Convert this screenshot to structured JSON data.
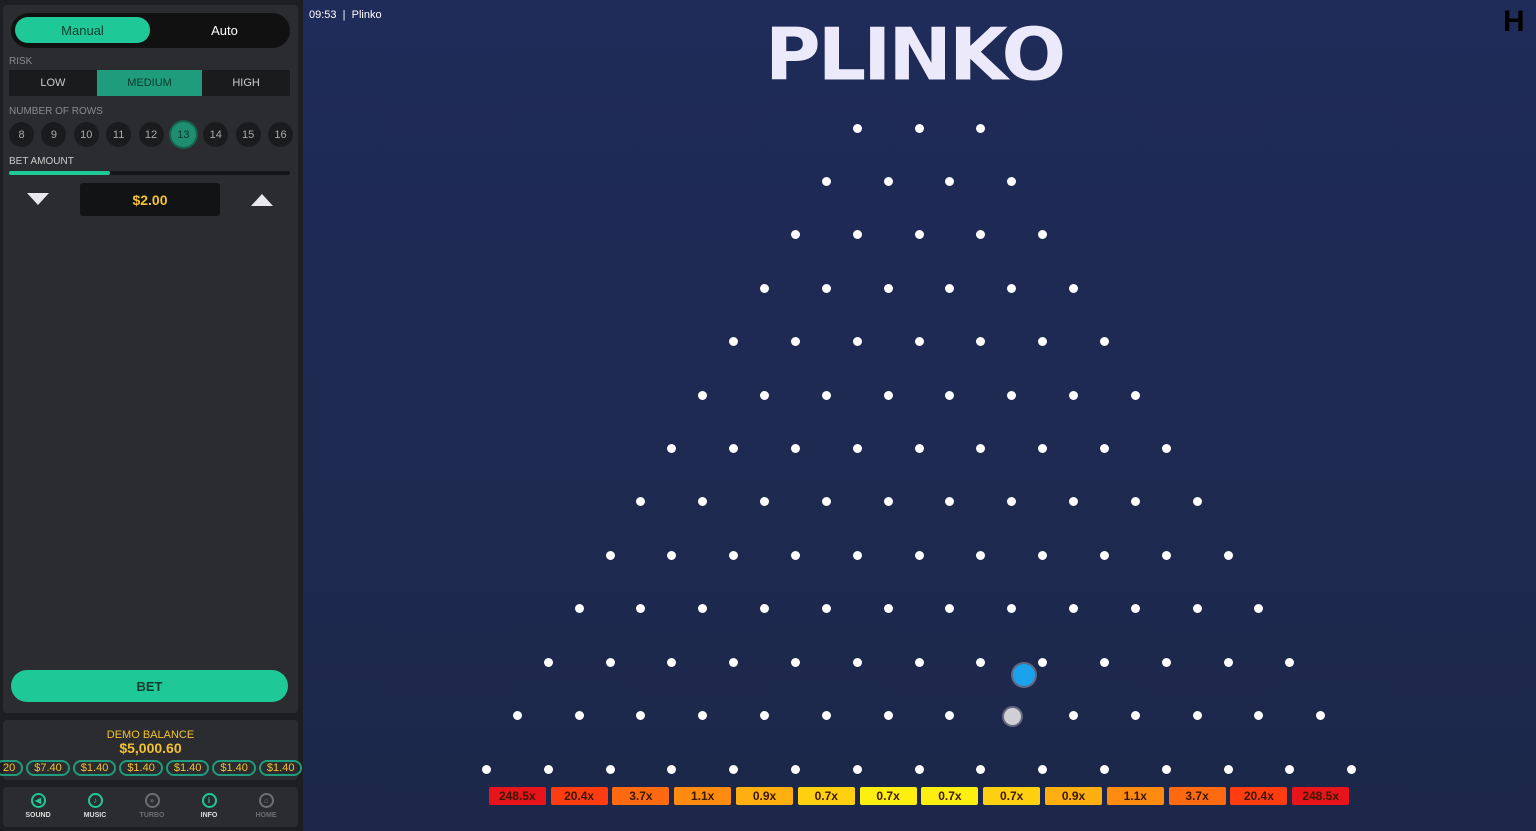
{
  "header": {
    "time": "09:53",
    "game": "Plinko",
    "logo": "PLINKO",
    "brand_icon": "h-logo-icon"
  },
  "sidebar": {
    "modes": [
      "Manual",
      "Auto"
    ],
    "active_mode": "Manual",
    "risk_label": "RISK",
    "risk": [
      "LOW",
      "MEDIUM",
      "HIGH"
    ],
    "active_risk": "MEDIUM",
    "rows_label": "NUMBER OF ROWS",
    "rows": [
      "8",
      "9",
      "10",
      "11",
      "12",
      "13",
      "14",
      "15",
      "16"
    ],
    "active_rows": "13",
    "bet_label": "BET AMOUNT",
    "bet_slider_percent": 36,
    "bet_amount": "$2.00",
    "bet_button": "BET",
    "balance_label": "DEMO BALANCE",
    "balance": "$5,000.60",
    "history": [
      "20",
      "$7.40",
      "$1.40",
      "$1.40",
      "$1.40",
      "$1.40",
      "$1.40"
    ],
    "controls": [
      {
        "label": "SOUND",
        "icon": "speaker-icon",
        "active": true
      },
      {
        "label": "MUSIC",
        "icon": "music-note-icon",
        "active": true
      },
      {
        "label": "TURBO",
        "icon": "turbo-icon",
        "active": false
      },
      {
        "label": "INFO",
        "icon": "info-icon",
        "active": true
      },
      {
        "label": "HOME",
        "icon": "home-icon",
        "active": false
      }
    ]
  },
  "board": {
    "multipliers": [
      "248.5x",
      "20.4x",
      "3.7x",
      "1.1x",
      "0.9x",
      "0.7x",
      "0.7x",
      "0.7x",
      "0.7x",
      "0.9x",
      "1.1x",
      "3.7x",
      "20.4x",
      "248.5x"
    ],
    "colors": [
      "#e8141b",
      "#ff3d10",
      "#ff6a10",
      "#ff8a10",
      "#ffb010",
      "#ffd010",
      "#ffef10",
      "#ffef10",
      "#ffd010",
      "#ffb010",
      "#ff8a10",
      "#ff6a10",
      "#ff3d10",
      "#e8141b"
    ],
    "ball_colors": [
      "#1aa3ec",
      "#cfcfd4"
    ]
  }
}
